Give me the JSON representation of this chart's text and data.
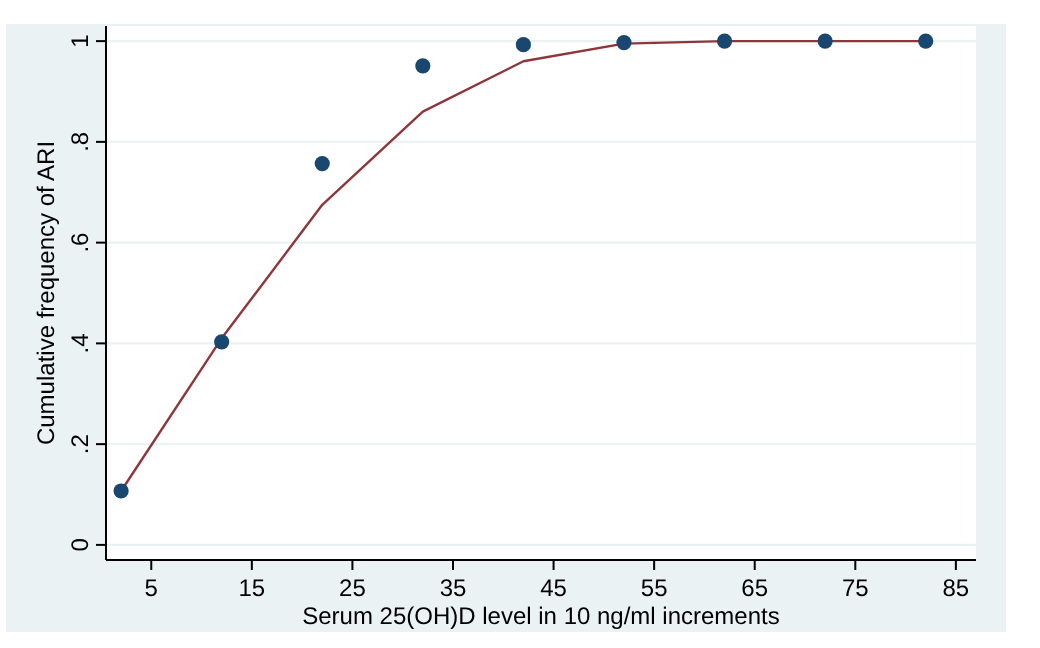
{
  "chart_data": {
    "type": "scatter",
    "xlabel": "Serum 25(OH)D level in 10 ng/ml increments",
    "ylabel": "Cumulative frequency of ARI",
    "x": [
      2,
      12,
      22,
      32,
      42,
      52,
      62,
      72,
      82
    ],
    "series": [
      {
        "color": "#1a476f",
        "marker": "circle",
        "values": [
          0.107,
          0.403,
          0.757,
          0.951,
          0.993,
          0.997,
          1,
          1,
          1
        ]
      },
      {
        "type": "line",
        "color": "#90353b",
        "marker": "none",
        "values": [
          0.107,
          0.41,
          0.675,
          0.86,
          0.96,
          0.995,
          1,
          1,
          1
        ]
      }
    ],
    "xlim": [
      0.5,
      87
    ],
    "xticks": [
      5,
      15,
      25,
      35,
      45,
      55,
      65,
      75,
      85
    ],
    "ylim": [
      -0.03,
      1.03
    ],
    "yticks": [
      {
        "value": 0,
        "label": "0"
      },
      {
        "value": 0.2,
        "label": ".2"
      },
      {
        "value": 0.4,
        "label": ".4"
      },
      {
        "value": 0.6,
        "label": ".6"
      },
      {
        "value": 0.8,
        "label": ".8"
      },
      {
        "value": 1,
        "label": "1"
      }
    ],
    "grid": "y"
  }
}
